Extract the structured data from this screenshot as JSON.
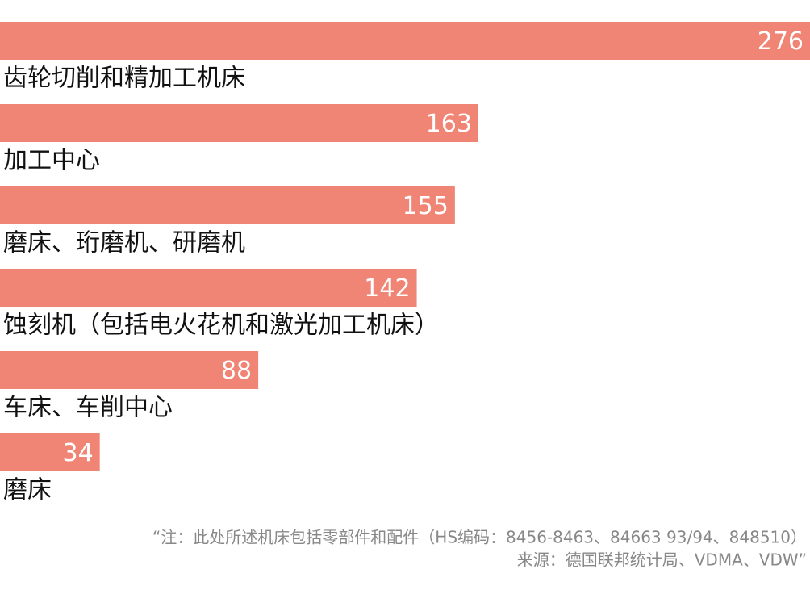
{
  "chart_data": {
    "type": "bar",
    "orientation": "horizontal",
    "categories": [
      "齿轮切削和精加工机床",
      "加工中心",
      "磨床、珩磨机、研磨机",
      "蚀刻机（包括电火花机和激光加工机床）",
      "车床、车削中心",
      "磨床"
    ],
    "values": [
      276,
      163,
      155,
      142,
      88,
      34
    ],
    "color": "#f08575",
    "xlim": [
      0,
      276
    ],
    "notes": [
      "“注：此处所述机床包括零部件和配件（HS编码：8456-8463、84663 93/94、848510）",
      "来源：德国联邦统计局、VDMA、VDW”"
    ]
  }
}
